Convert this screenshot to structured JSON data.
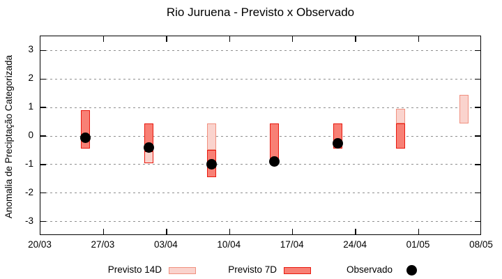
{
  "chart_data": {
    "type": "bar",
    "title": "Rio Juruena - Previsto x Observado",
    "ylabel": "Anomalia de Preciptação Categorizada",
    "xlabel": "",
    "ylim": [
      -3.5,
      3.5
    ],
    "yticks": [
      3,
      2,
      1,
      0,
      -1,
      -2,
      -3
    ],
    "grid": "dashed horizontal",
    "legend_position": "bottom center",
    "x_axis": {
      "total_days": 49,
      "tick_days": [
        0,
        7,
        14,
        21,
        28,
        35,
        42,
        49
      ],
      "tick_labels": [
        "20/03",
        "27/03",
        "03/04",
        "10/04",
        "17/04",
        "24/04",
        "01/05",
        "08/05"
      ]
    },
    "series": [
      {
        "name": "Previsto 14D",
        "type": "range_bar",
        "fill": "#fad3cd",
        "border": "#f0907f"
      },
      {
        "name": "Previsto 7D",
        "type": "range_bar",
        "fill": "#f88075",
        "border": "#e8180d"
      },
      {
        "name": "Observado",
        "type": "point",
        "color": "#000000"
      }
    ],
    "groups": [
      {
        "date_label": "25/03",
        "day": 5,
        "segments": [
          {
            "top": 0.9,
            "bottom": -0.45,
            "fill": "dark",
            "border": "dark"
          }
        ],
        "observed": -0.05
      },
      {
        "date_label": "01/04",
        "day": 12,
        "segments": [
          {
            "top": 0.45,
            "bottom": -0.55,
            "fill": "dark",
            "border": "dark"
          },
          {
            "top": -0.55,
            "bottom": -0.95,
            "fill": "light",
            "border": "dark"
          }
        ],
        "observed": -0.4
      },
      {
        "date_label": "08/04",
        "day": 19,
        "segments": [
          {
            "top": 0.45,
            "bottom": -0.5,
            "fill": "light",
            "border": "light"
          },
          {
            "top": -0.5,
            "bottom": -1.45,
            "fill": "dark",
            "border": "dark"
          }
        ],
        "observed": -1.0
      },
      {
        "date_label": "15/04",
        "day": 26,
        "segments": [
          {
            "top": 0.45,
            "bottom": -0.9,
            "fill": "dark",
            "border": "dark"
          }
        ],
        "observed": -0.9
      },
      {
        "date_label": "22/04",
        "day": 33,
        "segments": [
          {
            "top": 0.45,
            "bottom": -0.45,
            "fill": "dark",
            "border": "dark"
          }
        ],
        "observed": -0.25
      },
      {
        "date_label": "29/04",
        "day": 40,
        "segments": [
          {
            "top": 0.95,
            "bottom": 0.45,
            "fill": "light",
            "border": "light"
          },
          {
            "top": 0.45,
            "bottom": -0.45,
            "fill": "dark",
            "border": "dark"
          }
        ],
        "observed": null
      },
      {
        "date_label": "06/05",
        "day": 47,
        "segments": [
          {
            "top": 1.45,
            "bottom": 0.45,
            "fill": "light",
            "border": "light"
          }
        ],
        "observed": null
      }
    ],
    "colors": {
      "background": "#ffffff",
      "axis": "#000000",
      "grid": "#8f8f8f",
      "light_fill": "#fad3cd",
      "light_border": "#f0907f",
      "dark_fill": "#f88075",
      "dark_border": "#e8180d",
      "observed": "#000000"
    }
  }
}
